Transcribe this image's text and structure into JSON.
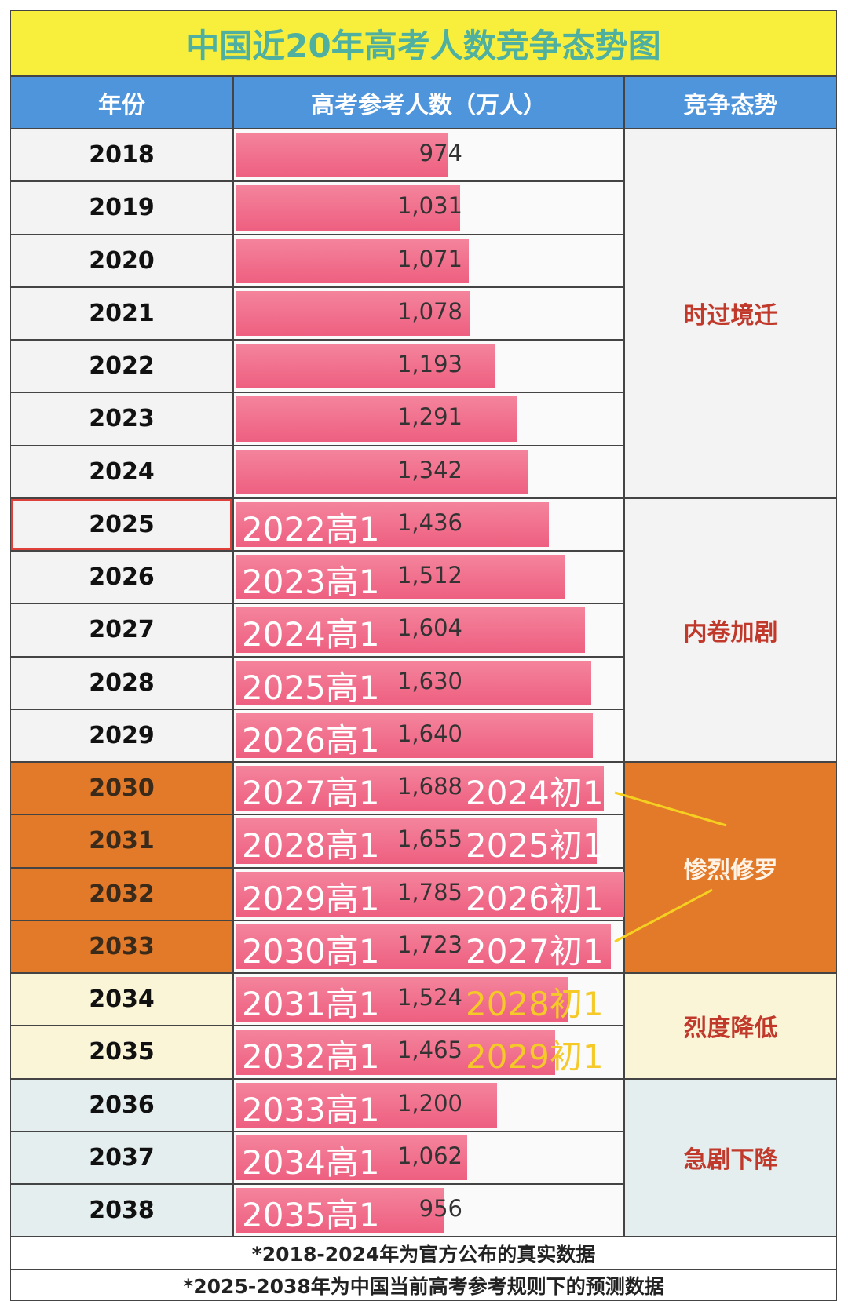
{
  "title": "中国近20年高考人数竞争态势图",
  "headers": [
    "年份",
    "高考参考人数（万人）",
    "竞争态势"
  ],
  "groups": [
    {
      "label": "时过境迁",
      "color": "#f3f3f3",
      "rows": [
        {
          "year": "2018",
          "value": 974
        },
        {
          "year": "2019",
          "value": 1031,
          "value_label": "1,031"
        },
        {
          "year": "2020",
          "value": 1071,
          "value_label": "1,071"
        },
        {
          "year": "2021",
          "value": 1078,
          "value_label": "1,078"
        },
        {
          "year": "2022",
          "value": 1193,
          "value_label": "1,193"
        },
        {
          "year": "2023",
          "value": 1291,
          "value_label": "1,291"
        },
        {
          "year": "2024",
          "value": 1342,
          "value_label": "1,342"
        }
      ]
    },
    {
      "label": "内卷加剧",
      "color": "#f3f3f3",
      "rows": [
        {
          "year": "2025",
          "value": 1436,
          "value_label": "1,436",
          "high": "2022高1"
        },
        {
          "year": "2026",
          "value": 1512,
          "value_label": "1,512",
          "high": "2023高1"
        },
        {
          "year": "2027",
          "value": 1604,
          "value_label": "1,604",
          "high": "2024高1"
        },
        {
          "year": "2028",
          "value": 1630,
          "value_label": "1,630",
          "high": "2025高1"
        },
        {
          "year": "2029",
          "value": 1640,
          "value_label": "1,640",
          "high": "2026高1"
        }
      ]
    },
    {
      "label": "惨烈修罗",
      "color": "#e27a2a",
      "rows": [
        {
          "year": "2030",
          "value": 1688,
          "value_label": "1,688",
          "high": "2027高1",
          "junior": "2024初1"
        },
        {
          "year": "2031",
          "value": 1655,
          "value_label": "1,655",
          "high": "2028高1",
          "junior": "2025初1"
        },
        {
          "year": "2032",
          "value": 1785,
          "value_label": "1,785",
          "high": "2029高1",
          "junior": "2026初1"
        },
        {
          "year": "2033",
          "value": 1723,
          "value_label": "1,723",
          "high": "2030高1",
          "junior": "2027初1"
        }
      ]
    },
    {
      "label": "烈度降低",
      "color": "#fbf5d8",
      "rows": [
        {
          "year": "2034",
          "value": 1524,
          "value_label": "1,524",
          "high": "2031高1",
          "junior": "2028初1"
        },
        {
          "year": "2035",
          "value": 1465,
          "value_label": "1,465",
          "high": "2032高1",
          "junior": "2029初1"
        }
      ]
    },
    {
      "label": "急剧下降",
      "color": "#e4eeee",
      "rows": [
        {
          "year": "2036",
          "value": 1200,
          "value_label": "1,200",
          "high": "2033高1"
        },
        {
          "year": "2037",
          "value": 1062,
          "value_label": "1,062",
          "high": "2034高1"
        },
        {
          "year": "2038",
          "value": 956,
          "high": "2035高1"
        }
      ]
    }
  ],
  "notes": [
    "*2018-2024年为官方公布的真实数据",
    "*2025-2038年为中国当前高考参考规则下的预测数据"
  ]
}
